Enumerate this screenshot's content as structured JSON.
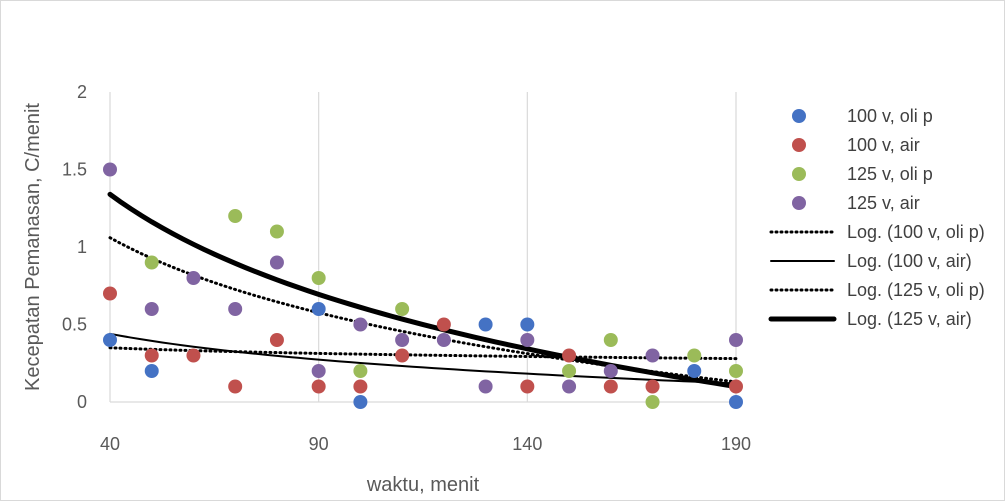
{
  "chart_data": {
    "type": "scatter",
    "title": "",
    "xlabel": "waktu, menit",
    "ylabel": "Kecepatan Pemanasan, C/menit",
    "xlim": [
      40,
      190
    ],
    "ylim": [
      0,
      2
    ],
    "x_ticks": [
      "40",
      "90",
      "140",
      "190"
    ],
    "y_ticks": [
      "0",
      "0.5",
      "1",
      "1.5",
      "2"
    ],
    "grid": "vertical",
    "legend_position": "right",
    "series": [
      {
        "name": "100 v, oli p",
        "color": "#4472c4",
        "x": [
          40,
          50,
          90,
          100,
          130,
          140,
          180,
          190
        ],
        "y": [
          0.4,
          0.2,
          0.6,
          0,
          0.5,
          0.5,
          0.2,
          0
        ]
      },
      {
        "name": "100 v, air",
        "color": "#c0504d",
        "x": [
          40,
          50,
          60,
          70,
          80,
          90,
          100,
          110,
          120,
          140,
          150,
          160,
          170,
          190
        ],
        "y": [
          0.7,
          0.3,
          0.3,
          0.1,
          0.4,
          0.1,
          0.1,
          0.3,
          0.5,
          0.1,
          0.3,
          0.1,
          0.1,
          0.1
        ]
      },
      {
        "name": "125 v, oli p",
        "color": "#9bbb59",
        "x": [
          50,
          70,
          80,
          90,
          100,
          110,
          150,
          160,
          170,
          180,
          190
        ],
        "y": [
          0.9,
          1.2,
          1.1,
          0.8,
          0.2,
          0.6,
          0.2,
          0.4,
          0,
          0.3,
          0.2
        ]
      },
      {
        "name": "125 v, air",
        "color": "#8064a2",
        "x": [
          40,
          50,
          60,
          70,
          80,
          90,
          100,
          110,
          120,
          130,
          140,
          150,
          160,
          170,
          190
        ],
        "y": [
          1.5,
          0.6,
          0.8,
          0.6,
          0.9,
          0.2,
          0.5,
          0.4,
          0.4,
          0.1,
          0.4,
          0.1,
          0.2,
          0.3,
          0.4
        ]
      }
    ],
    "trendlines": [
      {
        "name": "Log. (100 v, oli p)",
        "style": "dotted",
        "width": 3,
        "y_at_40": 0.35,
        "y_at_190": 0.28
      },
      {
        "name": "Log. (100 v, air)",
        "style": "solid",
        "width": 2,
        "y_at_40": 0.44,
        "y_at_190": 0.12
      },
      {
        "name": "Log. (125 v, oli p)",
        "style": "dotted",
        "width": 3,
        "y_at_40": 1.06,
        "y_at_190": 0.13
      },
      {
        "name": "Log. (125 v, air)",
        "style": "solid",
        "width": 5,
        "y_at_40": 1.34,
        "y_at_190": 0.1
      }
    ]
  }
}
